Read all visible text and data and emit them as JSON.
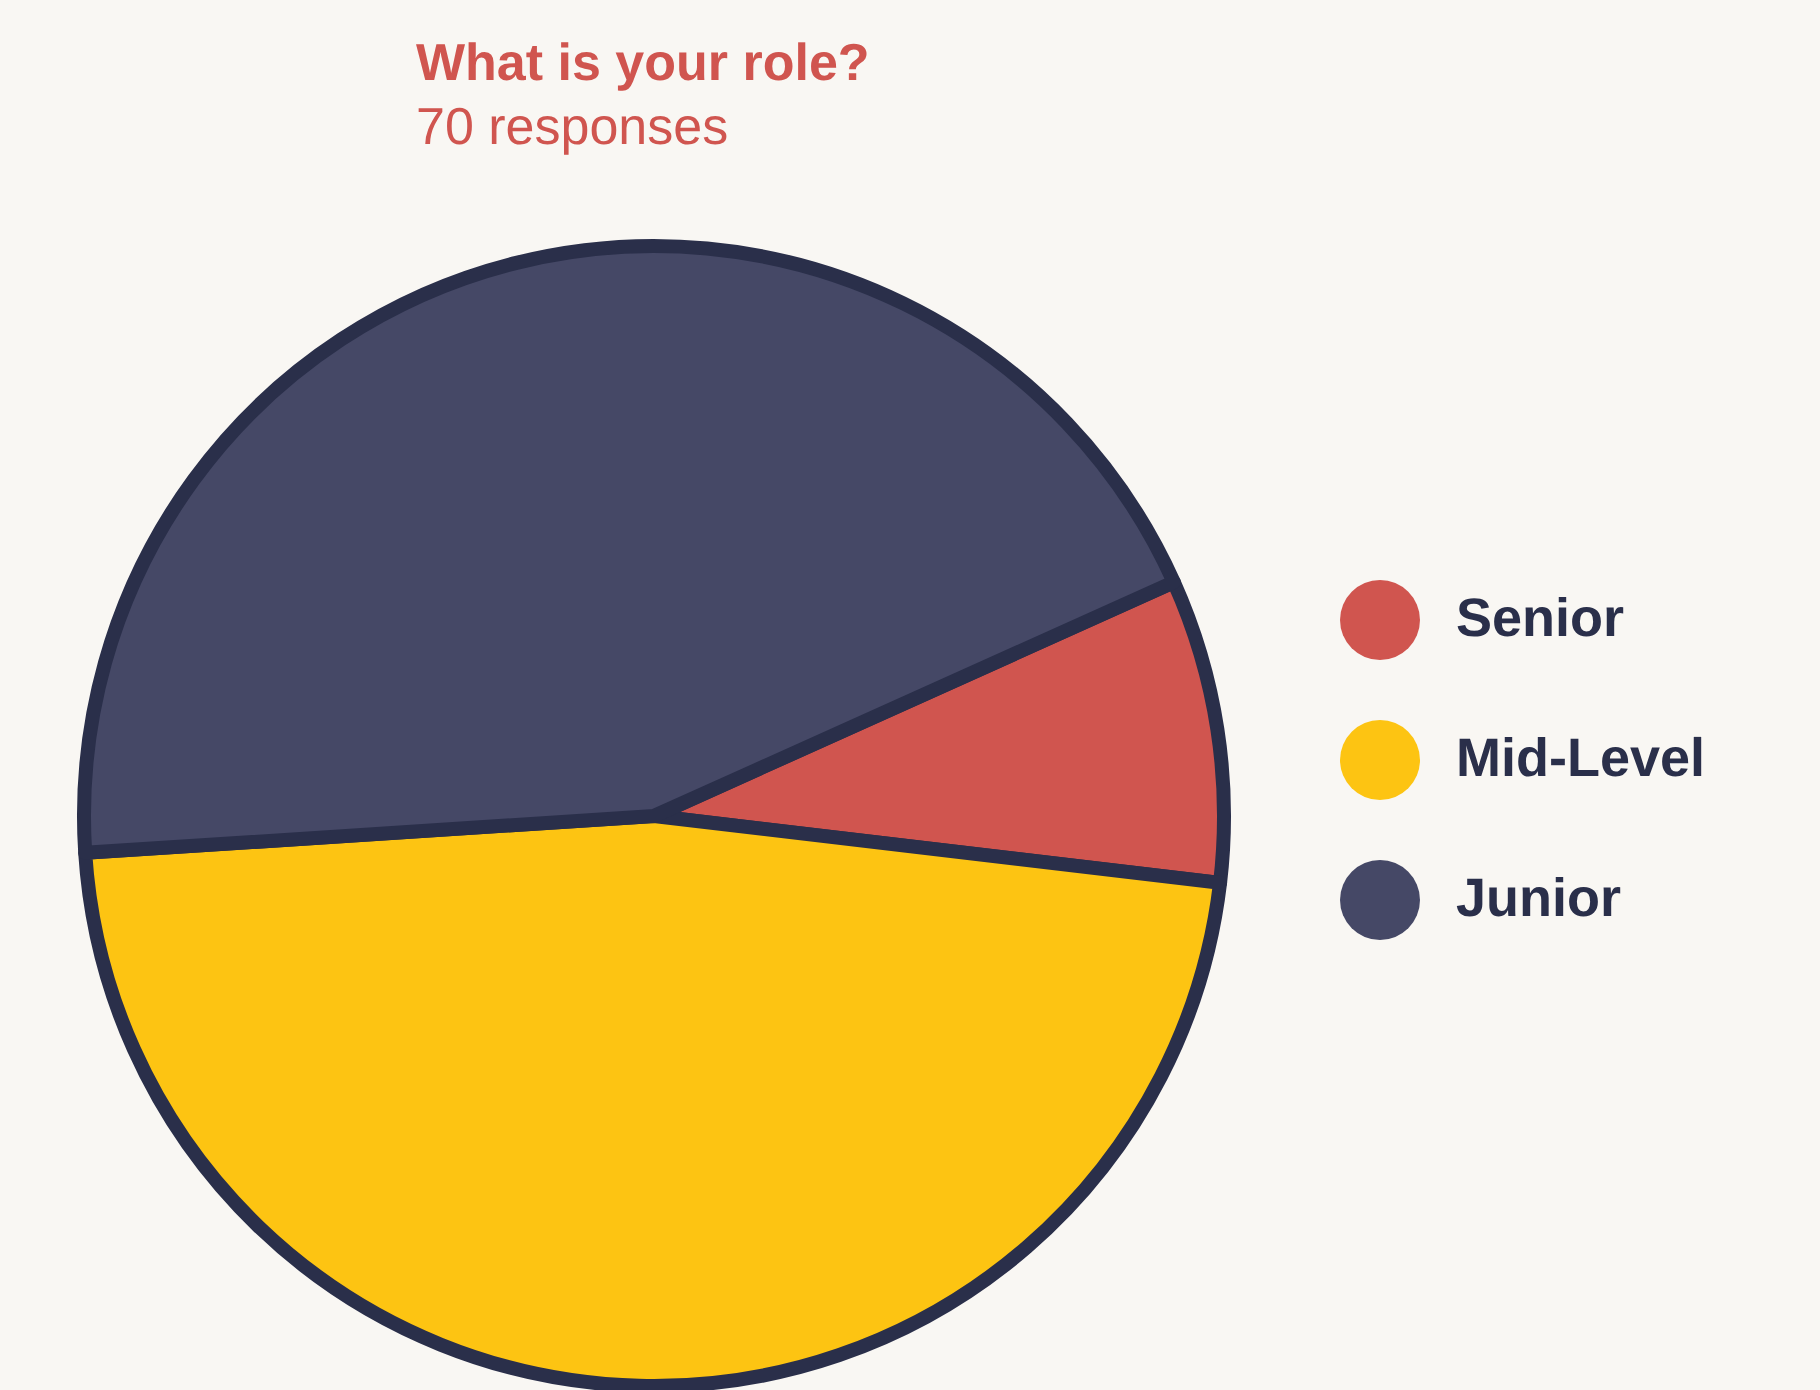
{
  "chart_data": {
    "type": "pie",
    "title": "What is your role?",
    "subtitle": "70 responses",
    "categories": [
      "Senior",
      "Mid-Level",
      "Junior"
    ],
    "values": [
      8.6,
      47.1,
      44.3
    ],
    "colors": [
      "#d0554f",
      "#fdc412",
      "#454866"
    ],
    "legend": "right"
  }
}
